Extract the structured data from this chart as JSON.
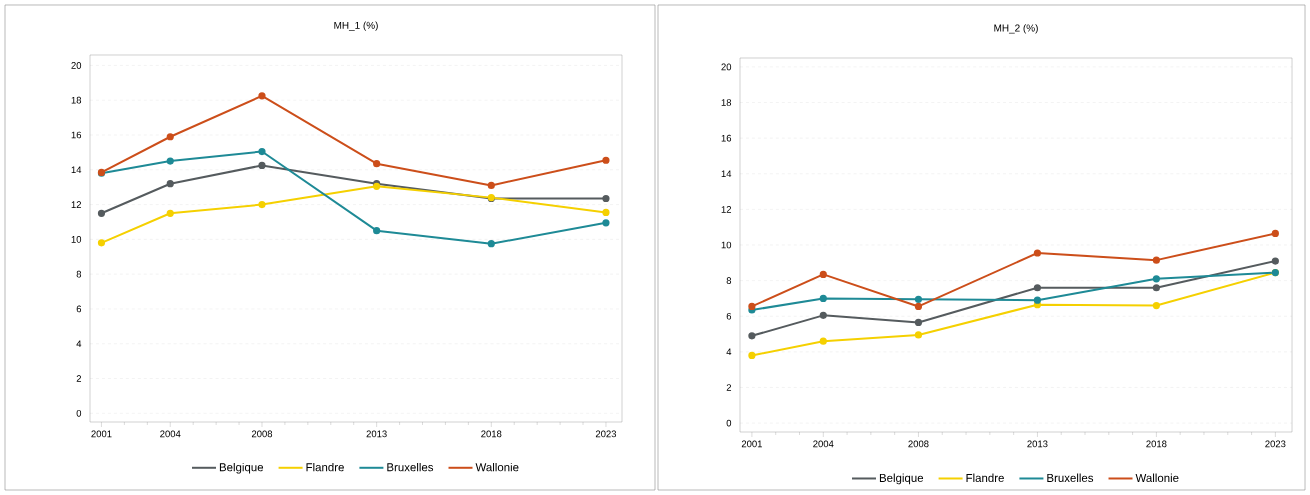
{
  "chart_data": [
    {
      "type": "line",
      "title": "MH_1 (%)",
      "x": [
        2001,
        2004,
        2008,
        2013,
        2018,
        2023
      ],
      "xlim": [
        2000.5,
        2023.7
      ],
      "xticks": [
        2001,
        {
          "value": 2002,
          "label": null
        },
        {
          "value": 2003,
          "label": null
        },
        2004,
        {
          "value": 2005,
          "label": null
        },
        {
          "value": 2006,
          "label": null
        },
        {
          "value": 2007,
          "label": null
        },
        2008,
        {
          "value": 2009,
          "label": null
        },
        {
          "value": 2010,
          "label": null
        },
        {
          "value": 2011,
          "label": null
        },
        {
          "value": 2012,
          "label": null
        },
        2013,
        {
          "value": 2014,
          "label": null
        },
        {
          "value": 2015,
          "label": null
        },
        {
          "value": 2016,
          "label": null
        },
        {
          "value": 2017,
          "label": null
        },
        2018,
        {
          "value": 2019,
          "label": null
        },
        {
          "value": 2020,
          "label": null
        },
        {
          "value": 2021,
          "label": null
        },
        {
          "value": 2022,
          "label": null
        },
        2023
      ],
      "ylim": [
        -0.5,
        20.6
      ],
      "yticks": [
        0,
        2,
        4,
        6,
        8,
        10,
        12,
        14,
        16,
        18,
        20
      ],
      "grid": "y",
      "legend": "bottom",
      "marker": "circle",
      "line_style": "solid",
      "series": [
        {
          "name": "Belgique",
          "color": "#555b5e",
          "values": [
            11.5,
            13.2,
            14.25,
            13.2,
            12.35,
            12.35
          ]
        },
        {
          "name": "Flandre",
          "color": "#f5d000",
          "values": [
            9.8,
            11.5,
            12.0,
            13.05,
            12.4,
            11.55
          ]
        },
        {
          "name": "Bruxelles",
          "color": "#1e8a96",
          "values": [
            13.8,
            14.5,
            15.05,
            10.5,
            9.75,
            10.95
          ]
        },
        {
          "name": "Wallonie",
          "color": "#cc4e1a",
          "values": [
            13.85,
            15.9,
            18.25,
            14.35,
            13.1,
            14.55
          ]
        }
      ]
    },
    {
      "type": "line",
      "title": "MH_2 (%)",
      "x": [
        2001,
        2004,
        2008,
        2013,
        2018,
        2023
      ],
      "xlim": [
        2000.5,
        2023.7
      ],
      "xticks": [
        2001,
        {
          "value": 2002,
          "label": null
        },
        {
          "value": 2003,
          "label": null
        },
        2004,
        {
          "value": 2005,
          "label": null
        },
        {
          "value": 2006,
          "label": null
        },
        {
          "value": 2007,
          "label": null
        },
        2008,
        {
          "value": 2009,
          "label": null
        },
        {
          "value": 2010,
          "label": null
        },
        {
          "value": 2011,
          "label": null
        },
        {
          "value": 2012,
          "label": null
        },
        2013,
        {
          "value": 2014,
          "label": null
        },
        {
          "value": 2015,
          "label": null
        },
        {
          "value": 2016,
          "label": null
        },
        {
          "value": 2017,
          "label": null
        },
        2018,
        {
          "value": 2019,
          "label": null
        },
        {
          "value": 2020,
          "label": null
        },
        {
          "value": 2021,
          "label": null
        },
        {
          "value": 2022,
          "label": null
        },
        2023
      ],
      "ylim": [
        -0.5,
        20.5
      ],
      "yticks": [
        0,
        2,
        4,
        6,
        8,
        10,
        12,
        14,
        16,
        18,
        20
      ],
      "grid": "y",
      "legend": "bottom",
      "marker": "circle",
      "line_style": "solid",
      "series": [
        {
          "name": "Belgique",
          "color": "#555b5e",
          "values": [
            4.9,
            6.05,
            5.65,
            7.6,
            7.6,
            9.1
          ]
        },
        {
          "name": "Flandre",
          "color": "#f5d000",
          "values": [
            3.8,
            4.6,
            4.95,
            6.65,
            6.6,
            8.45
          ]
        },
        {
          "name": "Bruxelles",
          "color": "#1e8a96",
          "values": [
            6.35,
            7.0,
            6.95,
            6.9,
            8.1,
            8.45
          ]
        },
        {
          "name": "Wallonie",
          "color": "#cc4e1a",
          "values": [
            6.55,
            8.35,
            6.55,
            9.55,
            9.15,
            10.65
          ]
        }
      ]
    }
  ]
}
